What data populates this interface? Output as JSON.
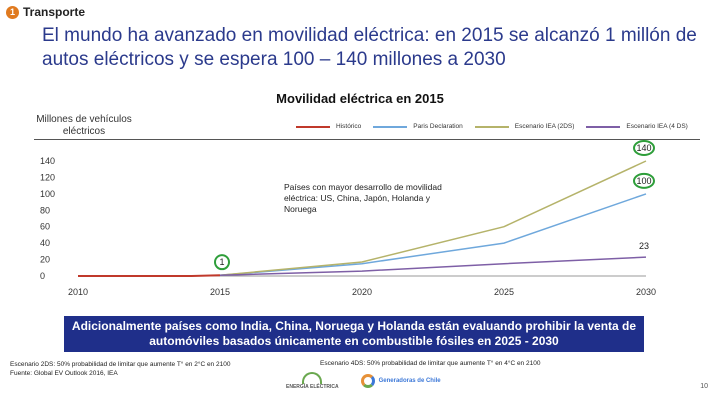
{
  "header": {
    "section_number": "1",
    "section_label": "Transporte",
    "title": "El mundo ha avanzado en movilidad eléctrica: en 2015 se alcanzó 1 millón de autos eléctricos y se espera 100 – 140 millones a 2030"
  },
  "chart_data": {
    "type": "line",
    "title": "Movilidad eléctrica en 2015",
    "ylabel": "Millones de vehículos eléctricos",
    "xlabel": "",
    "x": [
      2010,
      2015,
      2020,
      2025,
      2030
    ],
    "x_ticks": [
      "2010",
      "2015",
      "2020",
      "2025",
      "2030"
    ],
    "y_ticks": [
      "0",
      "20",
      "40",
      "60",
      "80",
      "100",
      "120",
      "140"
    ],
    "ylim": [
      0,
      140
    ],
    "xlim": [
      2010,
      2030
    ],
    "legend_position": "top",
    "series": [
      {
        "name": "Histórico",
        "color": "#c0392b",
        "points": [
          [
            2010,
            0
          ],
          [
            2011,
            0
          ],
          [
            2012,
            0
          ],
          [
            2013,
            0
          ],
          [
            2014,
            0
          ],
          [
            2015,
            1
          ]
        ]
      },
      {
        "name": "Paris Declaration",
        "color": "#6fa8dc",
        "points": [
          [
            2015,
            1
          ],
          [
            2020,
            15
          ],
          [
            2025,
            40
          ],
          [
            2030,
            100
          ]
        ]
      },
      {
        "name": "Escenario IEA (2DS)",
        "color": "#b5b36a",
        "points": [
          [
            2015,
            1
          ],
          [
            2020,
            17
          ],
          [
            2025,
            60
          ],
          [
            2030,
            140
          ]
        ]
      },
      {
        "name": "Escenario IEA (4 DS)",
        "color": "#7e5fa6",
        "points": [
          [
            2015,
            1
          ],
          [
            2020,
            6
          ],
          [
            2025,
            15
          ],
          [
            2030,
            23
          ]
        ]
      }
    ],
    "annotations": [
      {
        "label": "1",
        "x": 2015,
        "y": 1,
        "circled": true
      },
      {
        "label": "140",
        "x": 2030,
        "y": 140,
        "circled": true
      },
      {
        "label": "100",
        "x": 2030,
        "y": 100,
        "circled": true
      },
      {
        "label": "23",
        "x": 2030,
        "y": 23,
        "circled": false
      }
    ]
  },
  "inset_note": "Países con mayor desarrollo de movilidad eléctrica: US, China, Japón, Holanda y Noruega",
  "banner": "Adicionalmente países como India, China, Noruega y Holanda están evaluando prohibir la venta de automóviles basados únicamente en combustible fósiles en 2025 - 2030",
  "footnotes": {
    "line1": "Escenario 2DS: 50% probabilidad de limitar que aumente T° en 2°C en 2100",
    "line2": "Fuente: Global EV Outlook 2016, IEA",
    "line3": "Escenario 4DS: 50% probabilidad de limitar que aumente T° en 4°C en 2100"
  },
  "logos": {
    "logo_a_text": "ENERGÍA ELÉCTRICA",
    "logo_b_text": "Generadoras de Chile"
  },
  "page_number": "10"
}
